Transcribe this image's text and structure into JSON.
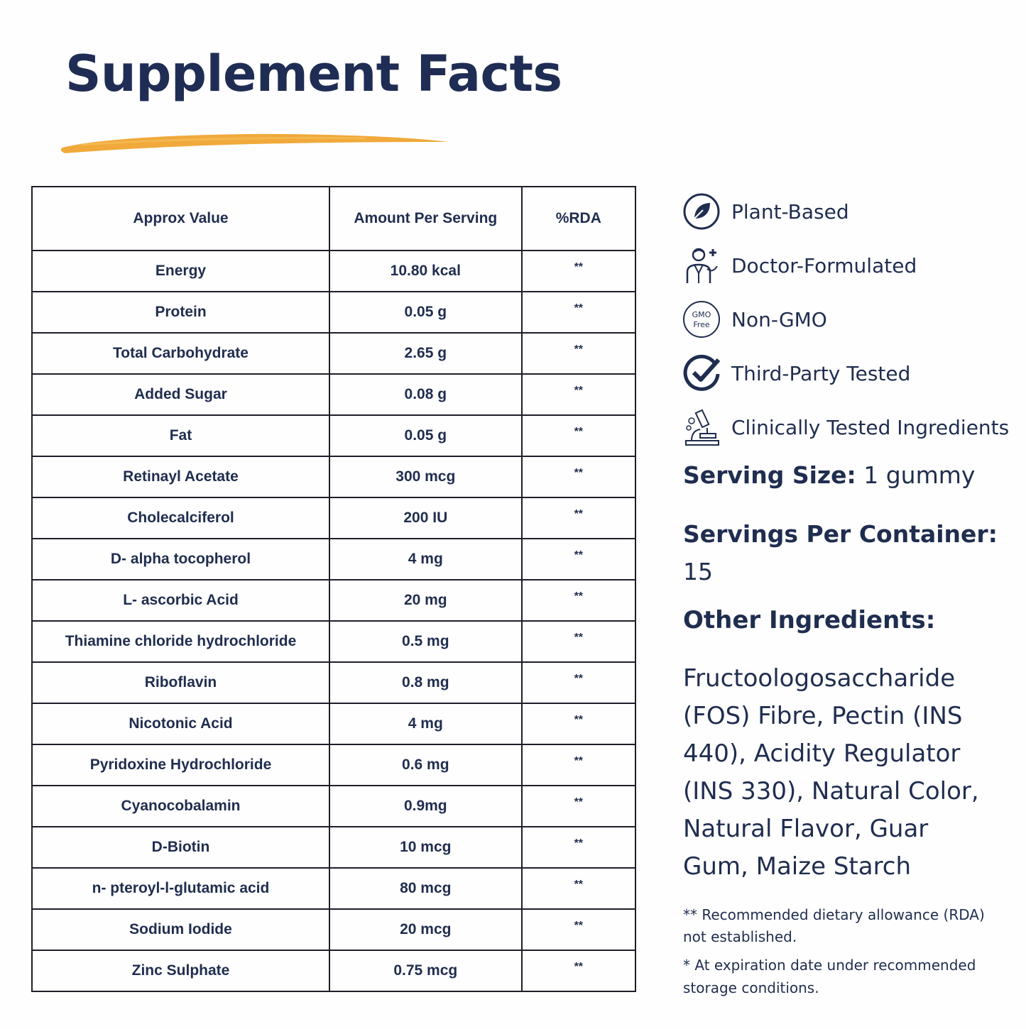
{
  "title": "Supplement Facts",
  "colors": {
    "navy": "#1f2d55",
    "accent_underline": "#f0a93a",
    "border": "#1e1e2a"
  },
  "table": {
    "headers": [
      "Approx Value",
      "Amount Per Serving",
      "%RDA"
    ],
    "rows": [
      {
        "name": "Energy",
        "amount": "10.80 kcal",
        "rda": "**"
      },
      {
        "name": "Protein",
        "amount": "0.05 g",
        "rda": "**"
      },
      {
        "name": "Total Carbohydrate",
        "amount": "2.65 g",
        "rda": "**"
      },
      {
        "name": "Added Sugar",
        "amount": "0.08 g",
        "rda": "**"
      },
      {
        "name": "Fat",
        "amount": "0.05 g",
        "rda": "**"
      },
      {
        "name": "Retinayl Acetate",
        "amount": "300 mcg",
        "rda": "**"
      },
      {
        "name": "Cholecalciferol",
        "amount": "200 IU",
        "rda": "**"
      },
      {
        "name": "D- alpha tocopherol",
        "amount": "4 mg",
        "rda": "**"
      },
      {
        "name": "L- ascorbic Acid",
        "amount": "20 mg",
        "rda": "**"
      },
      {
        "name": "Thiamine chloride hydrochloride",
        "amount": "0.5 mg",
        "rda": "**"
      },
      {
        "name": "Riboflavin",
        "amount": "0.8 mg",
        "rda": "**"
      },
      {
        "name": "Nicotonic Acid",
        "amount": "4 mg",
        "rda": "**"
      },
      {
        "name": "Pyridoxine Hydrochloride",
        "amount": "0.6 mg",
        "rda": "**"
      },
      {
        "name": "Cyanocobalamin",
        "amount": "0.9mg",
        "rda": "**"
      },
      {
        "name": "D-Biotin",
        "amount": "10 mcg",
        "rda": "**"
      },
      {
        "name": "n- pteroyl-l-glutamic acid",
        "amount": "80 mcg",
        "rda": "**"
      },
      {
        "name": "Sodium Iodide",
        "amount": "20 mcg",
        "rda": "**"
      },
      {
        "name": "Zinc Sulphate",
        "amount": "0.75 mcg",
        "rda": "**"
      }
    ]
  },
  "badges": [
    {
      "icon": "leaf-circle-icon",
      "label": "Plant-Based"
    },
    {
      "icon": "doctor-icon",
      "label": "Doctor-Formulated"
    },
    {
      "icon": "gmo-free-icon",
      "label": "Non-GMO",
      "icon_text_top": "GMO",
      "icon_text_bottom": "Free"
    },
    {
      "icon": "check-circle-icon",
      "label": "Third-Party Tested"
    },
    {
      "icon": "microscope-icon",
      "label": "Clinically Tested Ingredients"
    }
  ],
  "serving_size": {
    "label": "Serving Size:",
    "value": "1 gummy"
  },
  "servings_per_container": {
    "label": "Servings Per Container:",
    "value": "15"
  },
  "other_ingredients": {
    "label": "Other Ingredients:",
    "value": "Fructoologosaccharide (FOS) Fibre, Pectin (INS 440), Acidity Regulator (INS 330), Natural Color, Natural Flavor, Guar Gum, Maize Starch"
  },
  "notes": [
    "** Recommended dietary allowance (RDA) not established.",
    "* At expiration date under recommended storage conditions."
  ]
}
